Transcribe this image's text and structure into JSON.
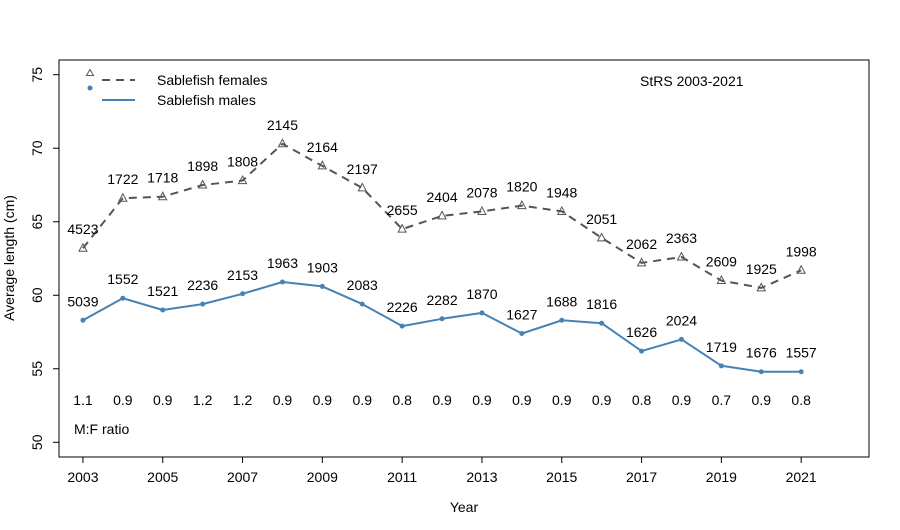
{
  "chart_data": {
    "type": "line",
    "title": "",
    "annotation": "StRS 2003-2021",
    "xlabel": "Year",
    "ylabel": "Average length (cm)",
    "xlim": [
      2002.4,
      2022.7
    ],
    "ylim": [
      49,
      76
    ],
    "x_ticks": [
      2003,
      2005,
      2007,
      2009,
      2011,
      2013,
      2015,
      2017,
      2019,
      2021
    ],
    "y_ticks": [
      50,
      55,
      60,
      65,
      70,
      75
    ],
    "grid": false,
    "legend_position": "top-left",
    "x": [
      2003,
      2004,
      2005,
      2006,
      2007,
      2008,
      2009,
      2010,
      2011,
      2012,
      2013,
      2014,
      2015,
      2016,
      2017,
      2018,
      2019,
      2020,
      2021
    ],
    "series": [
      {
        "name": "Sablefish females",
        "color": "#555555",
        "line_style": "dashed",
        "marker": "triangle",
        "values": [
          63.2,
          66.6,
          66.7,
          67.5,
          67.8,
          70.3,
          68.8,
          67.3,
          64.5,
          65.4,
          65.7,
          66.1,
          65.7,
          63.9,
          62.2,
          62.6,
          61.0,
          60.5,
          61.7
        ],
        "counts": [
          "4523",
          "1722",
          "1718",
          "1898",
          "1808",
          "2145",
          "2164",
          "2197",
          "2655",
          "2404",
          "2078",
          "1820",
          "1948",
          "2051",
          "2062",
          "2363",
          "2609",
          "1925",
          "1998"
        ]
      },
      {
        "name": "Sablefish males",
        "color": "#4682b4",
        "line_style": "solid",
        "marker": "dot",
        "values": [
          58.3,
          59.8,
          59.0,
          59.4,
          60.1,
          60.9,
          60.6,
          59.4,
          57.9,
          58.4,
          58.8,
          57.4,
          58.3,
          58.1,
          56.2,
          57.0,
          55.2,
          54.8,
          54.8
        ],
        "counts": [
          "5039",
          "1552",
          "1521",
          "2236",
          "2153",
          "1963",
          "1903",
          "2083",
          "2226",
          "2282",
          "1870",
          "1627",
          "1688",
          "1816",
          "1626",
          "2024",
          "1719",
          "1676",
          "1557"
        ]
      }
    ],
    "ratio_label": "M:F ratio",
    "ratios": [
      "1.1",
      "0.9",
      "0.9",
      "1.2",
      "1.2",
      "0.9",
      "0.9",
      "0.9",
      "0.8",
      "0.9",
      "0.9",
      "0.9",
      "0.9",
      "0.9",
      "0.8",
      "0.9",
      "0.7",
      "0.9",
      "0.8"
    ]
  }
}
